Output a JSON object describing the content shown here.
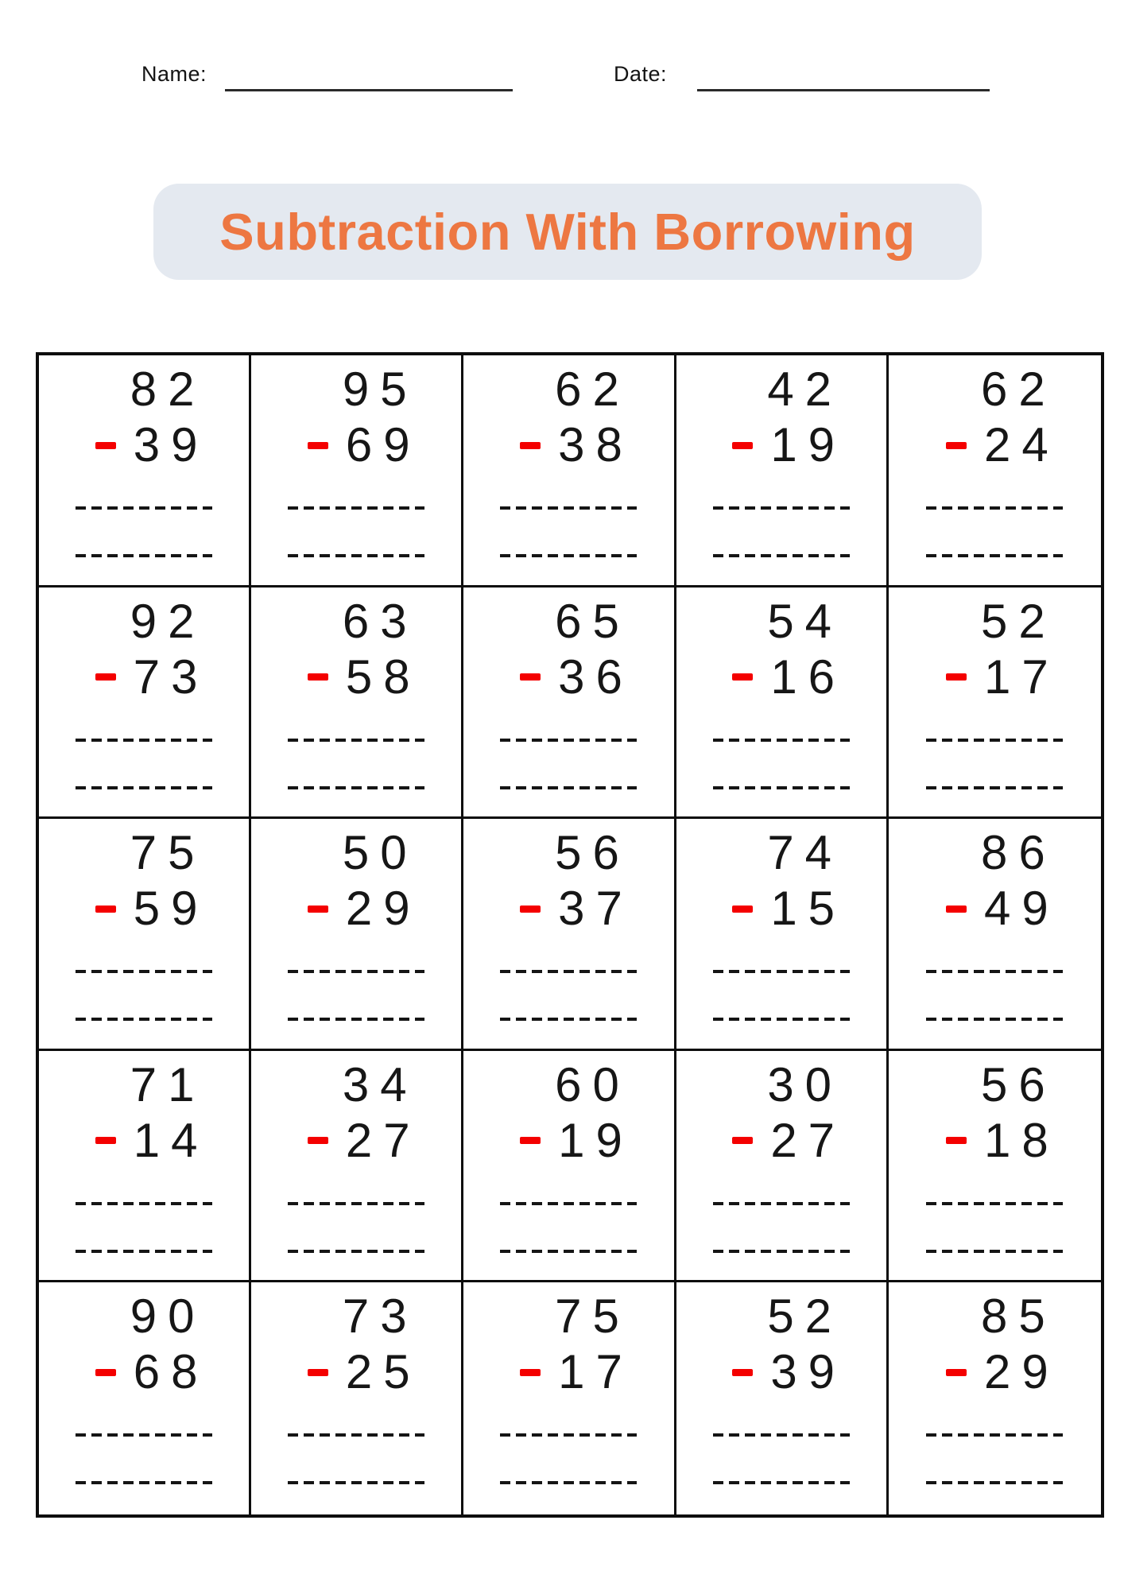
{
  "header": {
    "name_label": "Name:",
    "date_label": "Date:"
  },
  "title": "Subtraction With Borrowing",
  "colors": {
    "accent_orange": "#ED7742",
    "banner_bg": "#E4E9F0",
    "minus_red": "#F40000"
  },
  "operator": "minus",
  "problems": [
    {
      "minuend": "82",
      "subtrahend": "39"
    },
    {
      "minuend": "95",
      "subtrahend": "69"
    },
    {
      "minuend": "62",
      "subtrahend": "38"
    },
    {
      "minuend": "42",
      "subtrahend": "19"
    },
    {
      "minuend": "62",
      "subtrahend": "24"
    },
    {
      "minuend": "92",
      "subtrahend": "73"
    },
    {
      "minuend": "63",
      "subtrahend": "58"
    },
    {
      "minuend": "65",
      "subtrahend": "36"
    },
    {
      "minuend": "54",
      "subtrahend": "16"
    },
    {
      "minuend": "52",
      "subtrahend": "17"
    },
    {
      "minuend": "75",
      "subtrahend": "59"
    },
    {
      "minuend": "50",
      "subtrahend": "29"
    },
    {
      "minuend": "56",
      "subtrahend": "37"
    },
    {
      "minuend": "74",
      "subtrahend": "15"
    },
    {
      "minuend": "86",
      "subtrahend": "49"
    },
    {
      "minuend": "71",
      "subtrahend": "14"
    },
    {
      "minuend": "34",
      "subtrahend": "27"
    },
    {
      "minuend": "60",
      "subtrahend": "19"
    },
    {
      "minuend": "30",
      "subtrahend": "27"
    },
    {
      "minuend": "56",
      "subtrahend": "18"
    },
    {
      "minuend": "90",
      "subtrahend": "68"
    },
    {
      "minuend": "73",
      "subtrahend": "25"
    },
    {
      "minuend": "75",
      "subtrahend": "17"
    },
    {
      "minuend": "52",
      "subtrahend": "39"
    },
    {
      "minuend": "85",
      "subtrahend": "29"
    }
  ]
}
